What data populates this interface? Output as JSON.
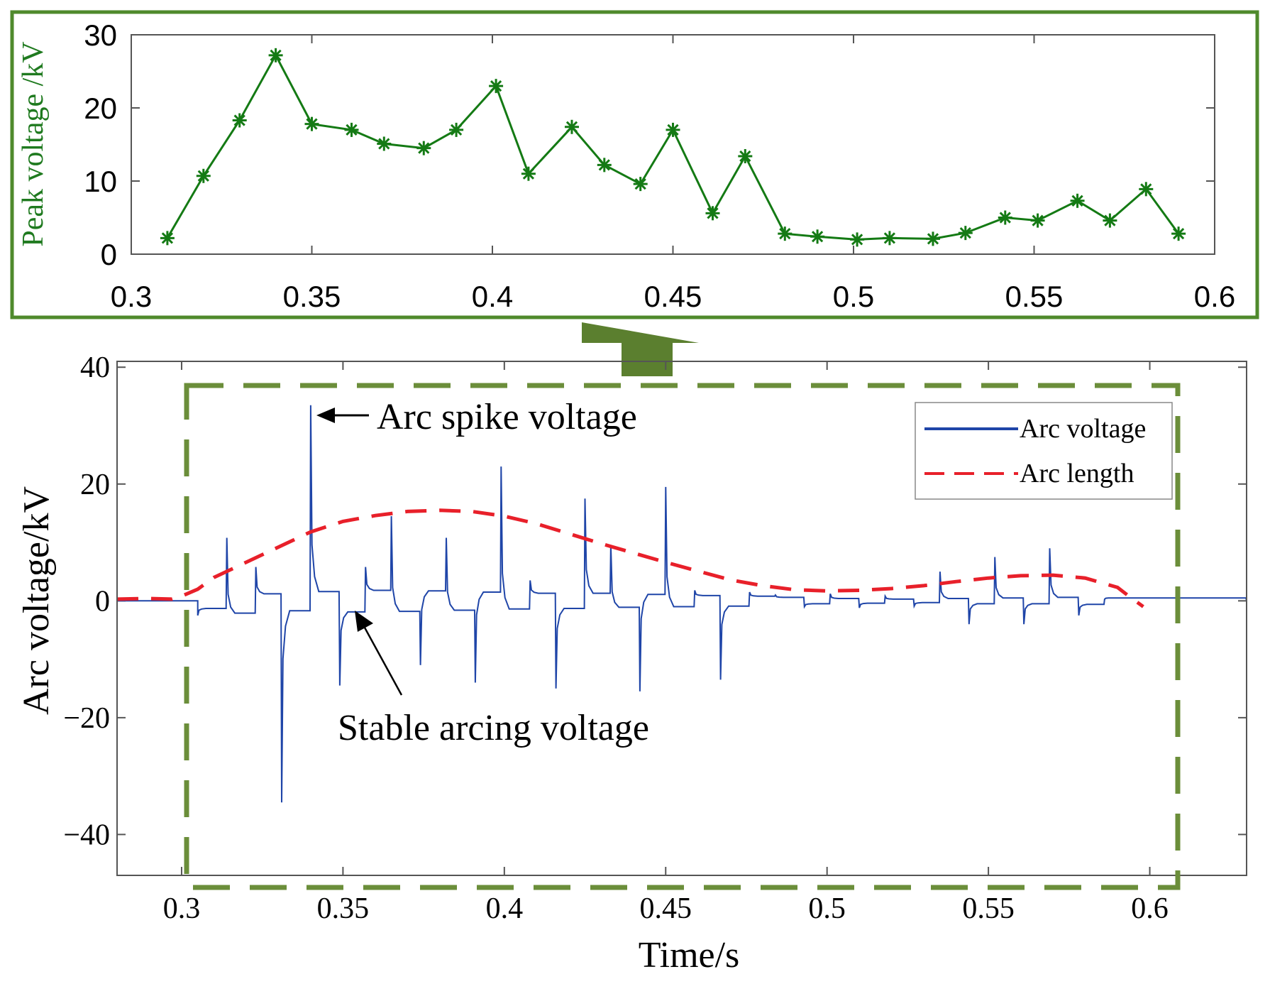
{
  "colors": {
    "top_frame": "#4f8a2c",
    "peak_line": "#147a14",
    "peak_label": "#1f7a1f",
    "arrow": "#5b7f2f",
    "dash_box": "#6b8e3a",
    "arc_voltage": "#1f45a8",
    "arc_length": "#e8202a",
    "axis": "#555555",
    "text": "#000000"
  },
  "chart_data": [
    {
      "name": "peak-voltage",
      "type": "line",
      "ylabel": "Peak voltage /kV",
      "xlabel": "",
      "xlim": [
        0.3,
        0.6
      ],
      "ylim": [
        0,
        30
      ],
      "xticks": [
        0.3,
        0.35,
        0.4,
        0.45,
        0.5,
        0.55,
        0.6
      ],
      "xtick_labels": [
        "0.3",
        "0.35",
        "0.4",
        "0.45",
        "0.5",
        "0.55",
        "0.6"
      ],
      "yticks": [
        0,
        10,
        20,
        30
      ],
      "ytick_labels": [
        "0",
        "10",
        "20",
        "30"
      ],
      "marker": "asterisk",
      "series": [
        {
          "name": "Peak voltage",
          "x": [
            0.31,
            0.32,
            0.33,
            0.34,
            0.35,
            0.361,
            0.37,
            0.381,
            0.39,
            0.401,
            0.41,
            0.422,
            0.431,
            0.441,
            0.45,
            0.461,
            0.47,
            0.481,
            0.49,
            0.501,
            0.51,
            0.522,
            0.531,
            0.542,
            0.551,
            0.562,
            0.571,
            0.581,
            0.59
          ],
          "y": [
            2.2,
            10.7,
            18.3,
            27.2,
            17.8,
            17.0,
            15.1,
            14.5,
            17.0,
            23.0,
            11.0,
            17.4,
            12.2,
            9.6,
            17.0,
            5.6,
            13.4,
            2.8,
            2.4,
            2.0,
            2.2,
            2.1,
            2.9,
            5.0,
            4.6,
            7.3,
            4.6,
            8.9,
            2.8
          ]
        }
      ]
    },
    {
      "name": "arc-voltage",
      "type": "line",
      "xlabel": "Time/s",
      "ylabel": "Arc voltage/kV",
      "xlim": [
        0.28,
        0.63
      ],
      "ylim": [
        -47,
        41
      ],
      "xticks": [
        0.3,
        0.35,
        0.4,
        0.45,
        0.5,
        0.55,
        0.6
      ],
      "xtick_labels": [
        "0.3",
        "0.35",
        "0.4",
        "0.45",
        "0.5",
        "0.55",
        "0.6"
      ],
      "yticks": [
        40,
        20,
        0,
        -20,
        -40
      ],
      "ytick_labels": [
        "40",
        "20",
        "0",
        "−20",
        "−40"
      ],
      "legend": {
        "position": "top-right",
        "entries": [
          {
            "label": "Arc voltage",
            "style": "solid"
          },
          {
            "label": "Arc length",
            "style": "dashed"
          }
        ]
      },
      "annotations": [
        {
          "text": "Arc spike voltage",
          "points_to": {
            "x": 0.339,
            "y": 33.5
          }
        },
        {
          "text": "Stable arcing voltage",
          "points_to": {
            "x": 0.356,
            "y": -3.0
          }
        }
      ],
      "series": [
        {
          "name": "Arc length",
          "style": "dashed",
          "x": [
            0.28,
            0.29,
            0.297,
            0.3,
            0.305,
            0.31,
            0.32,
            0.33,
            0.34,
            0.35,
            0.36,
            0.37,
            0.38,
            0.39,
            0.4,
            0.41,
            0.42,
            0.43,
            0.44,
            0.45,
            0.46,
            0.47,
            0.48,
            0.49,
            0.5,
            0.51,
            0.52,
            0.53,
            0.54,
            0.55,
            0.56,
            0.57,
            0.58,
            0.59,
            0.594,
            0.598
          ],
          "y": [
            0.3,
            0.4,
            0.3,
            0.8,
            2.0,
            4.0,
            6.6,
            9.2,
            11.8,
            13.6,
            14.6,
            15.3,
            15.5,
            15.3,
            14.5,
            13.2,
            11.5,
            9.8,
            8.2,
            6.6,
            5.1,
            3.6,
            2.6,
            1.9,
            1.7,
            1.8,
            2.1,
            2.6,
            3.3,
            3.9,
            4.3,
            4.4,
            3.9,
            2.3,
            0.6,
            -1.0
          ]
        },
        {
          "name": "Arc voltage",
          "style": "solid",
          "baseline_end": 0.305,
          "segment_starts": [
            0.305,
            0.314,
            0.323,
            0.331,
            0.34,
            0.349,
            0.357,
            0.365,
            0.374,
            0.382,
            0.391,
            0.399,
            0.408,
            0.416,
            0.425,
            0.433,
            0.442,
            0.45,
            0.459,
            0.467,
            0.476,
            0.484,
            0.493,
            0.501,
            0.51,
            0.518,
            0.527,
            0.535,
            0.544,
            0.552,
            0.561,
            0.569,
            0.578,
            0.586
          ],
          "plateau_levels": [
            -1.3,
            -2.1,
            1.2,
            -1.7,
            1.6,
            -1.9,
            1.8,
            -1.8,
            1.7,
            -1.6,
            1.5,
            -1.4,
            1.3,
            -1.3,
            1.3,
            -1.1,
            1.1,
            -1.0,
            0.9,
            -0.9,
            0.8,
            0.6,
            -0.5,
            0.4,
            -0.4,
            0.3,
            -0.3,
            0.4,
            -0.5,
            0.5,
            -0.5,
            0.6,
            -0.6,
            0.5
          ],
          "spike_peaks": [
            -2.5,
            10.8,
            5.8,
            -34.5,
            33.5,
            -14.5,
            5.8,
            14.5,
            -11.0,
            10.8,
            -14.0,
            23.0,
            3.5,
            -15.0,
            17.5,
            9.5,
            -15.5,
            19.5,
            1.8,
            -13.5,
            1.5,
            1.0,
            -1.0,
            1.2,
            -1.2,
            0.8,
            -0.9,
            5.0,
            -4.0,
            7.5,
            -4.0,
            9.0,
            -2.5,
            0.3
          ],
          "trace_end": 0.63
        }
      ]
    }
  ]
}
